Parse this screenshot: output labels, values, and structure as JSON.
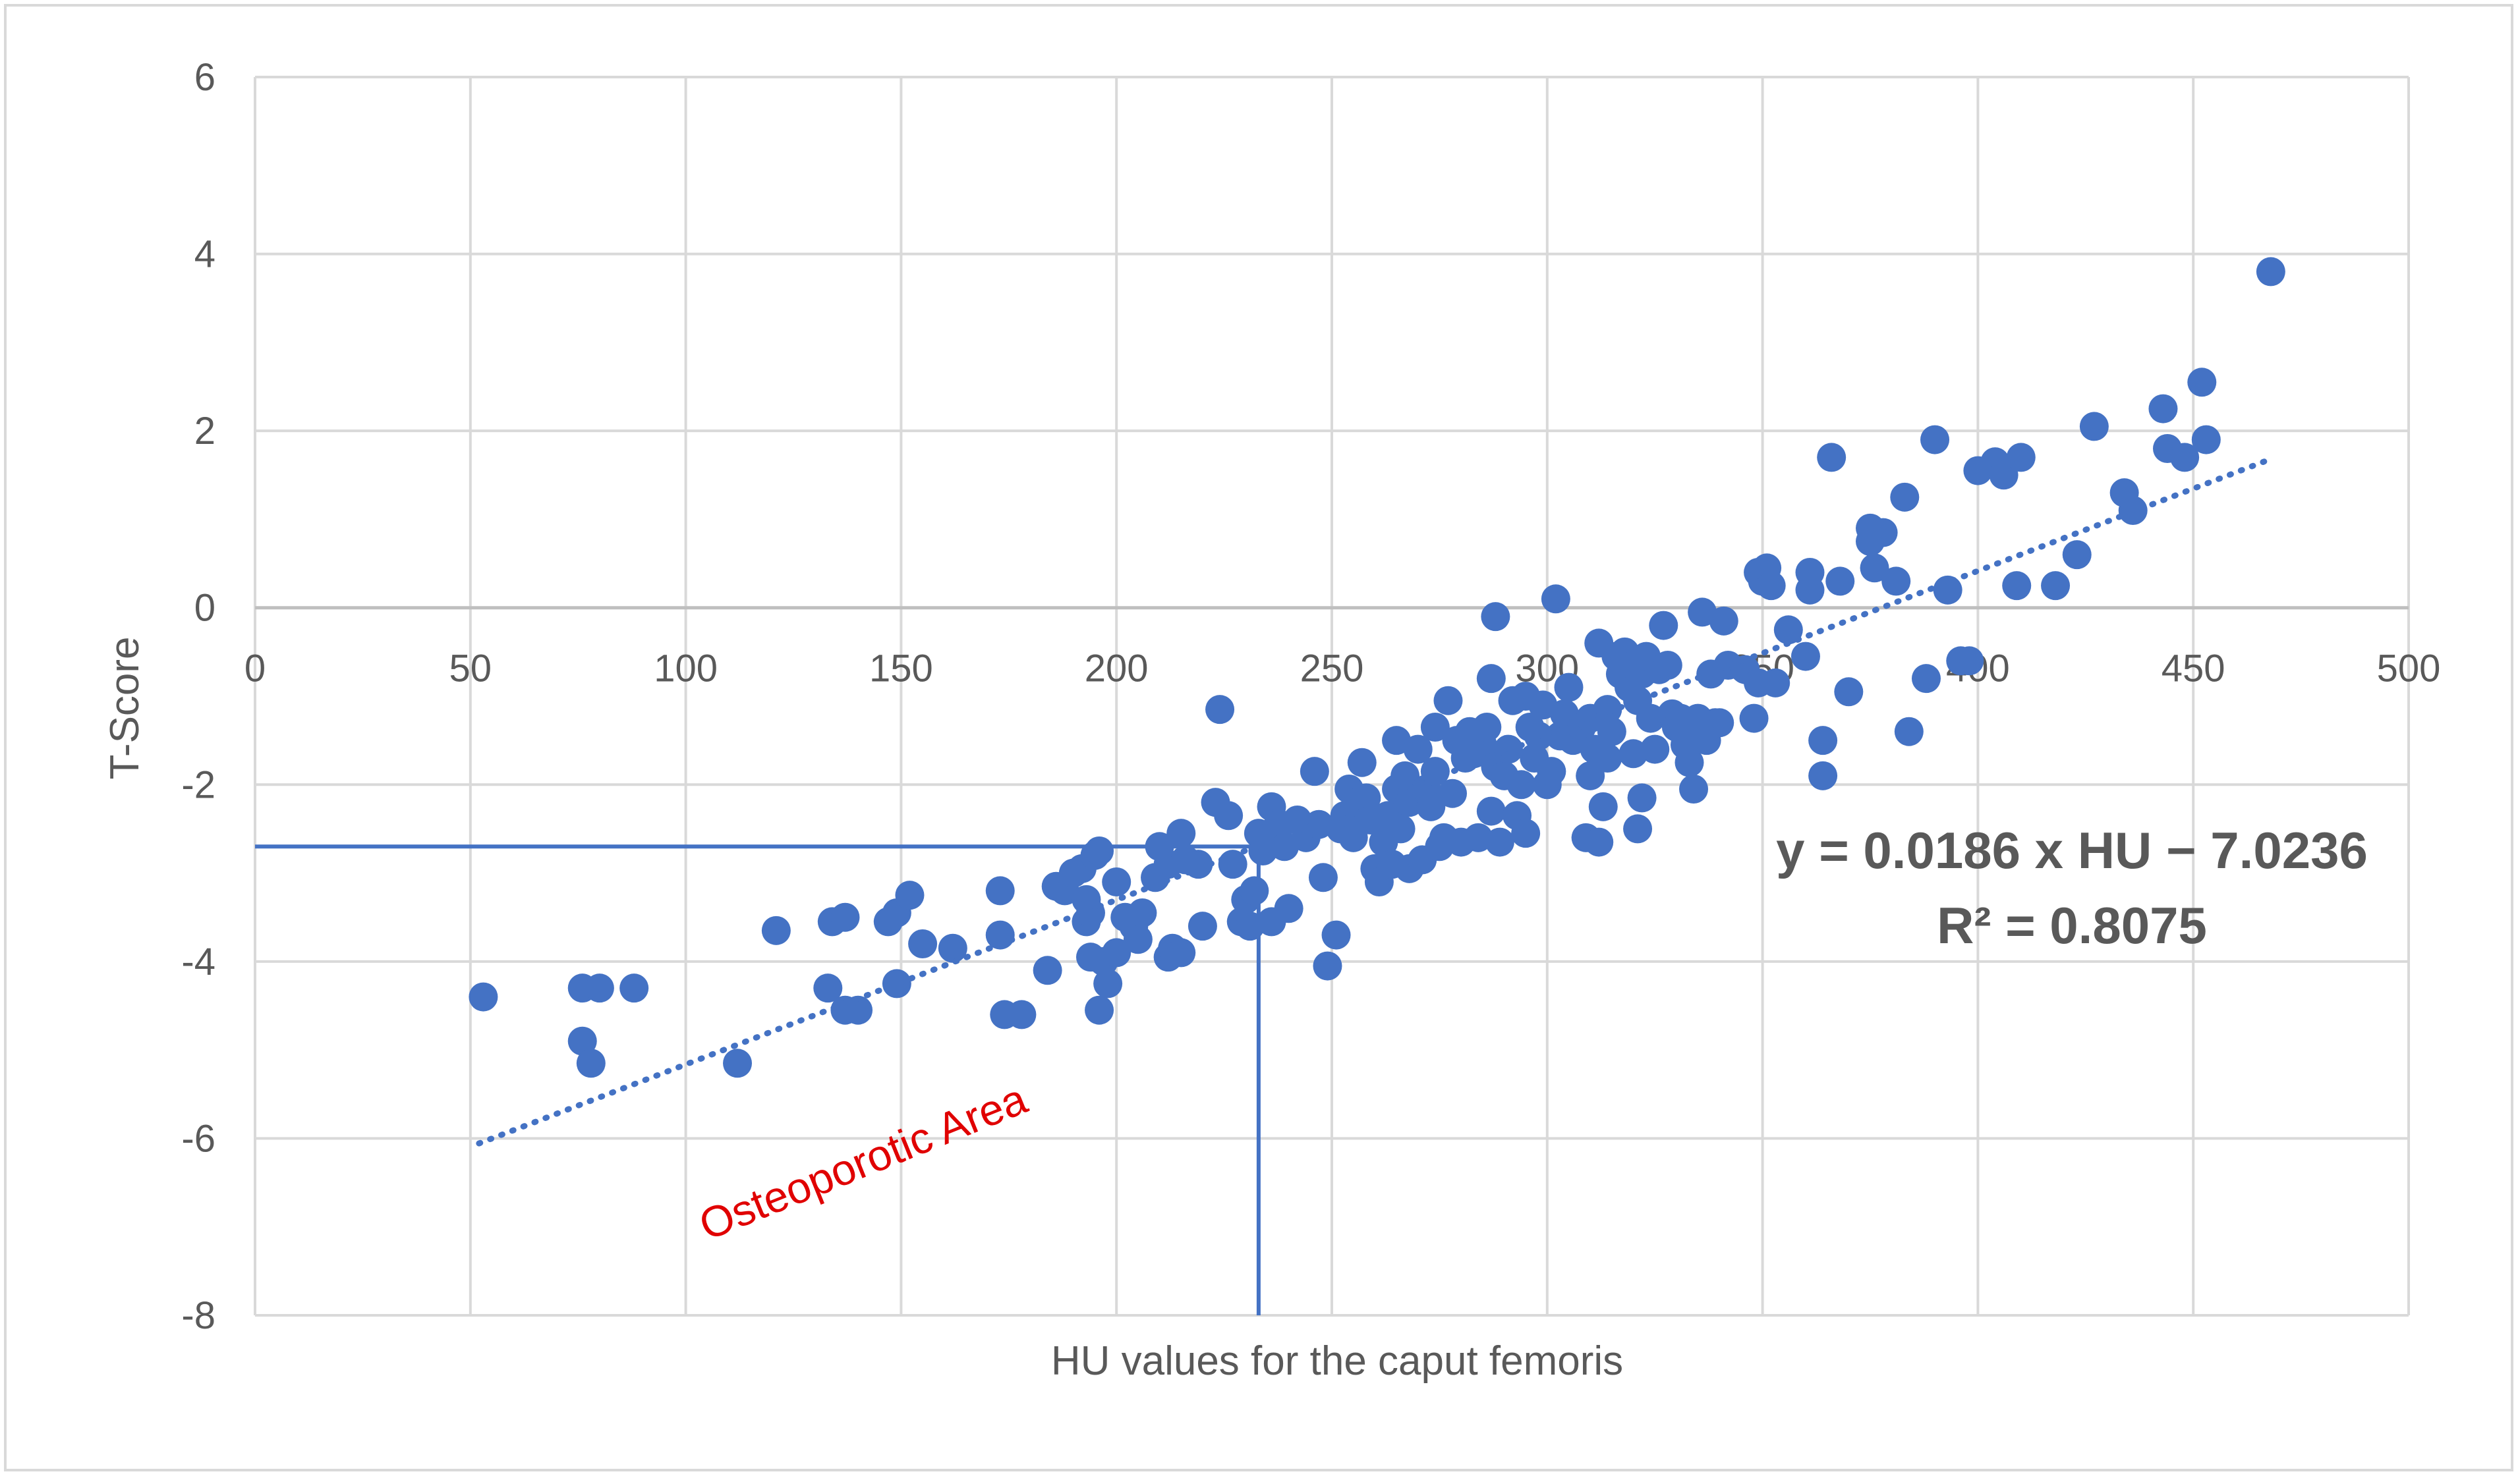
{
  "chart_data": {
    "type": "scatter",
    "xlabel": "HU values for the caput femoris",
    "ylabel": "T-Score",
    "xlim": [
      0,
      500
    ],
    "ylim": [
      -8,
      6
    ],
    "x_ticks": [
      0,
      50,
      100,
      150,
      200,
      250,
      300,
      350,
      400,
      450,
      500
    ],
    "y_ticks": [
      -8,
      -6,
      -4,
      -2,
      0,
      2,
      4,
      6
    ],
    "grid": true,
    "marker_color": "#4472c4",
    "trendline": {
      "style": "dotted",
      "slope": 0.0186,
      "intercept": -7.0236,
      "x_range": [
        52,
        467
      ],
      "equation": "y = 0.0186 x HU − 7.0236",
      "r_squared": "R² = 0.8075"
    },
    "threshold_lines": {
      "t_score": -2.7,
      "hu": 233,
      "color": "#4472c4"
    },
    "annotation": "Osteoporotic Area",
    "annotation_color": "#e00000",
    "points": [
      [
        53,
        -4.4
      ],
      [
        76,
        -4.3
      ],
      [
        80,
        -4.3
      ],
      [
        88,
        -4.3
      ],
      [
        76,
        -4.9
      ],
      [
        78,
        -5.15
      ],
      [
        112,
        -5.15
      ],
      [
        121,
        -3.65
      ],
      [
        134,
        -3.55
      ],
      [
        137,
        -3.5
      ],
      [
        133,
        -4.3
      ],
      [
        137,
        -4.55
      ],
      [
        140,
        -4.55
      ],
      [
        147,
        -3.55
      ],
      [
        149,
        -3.45
      ],
      [
        152,
        -3.25
      ],
      [
        149,
        -4.25
      ],
      [
        155,
        -3.8
      ],
      [
        162,
        -3.85
      ],
      [
        173,
        -3.2
      ],
      [
        173,
        -3.7
      ],
      [
        174,
        -4.6
      ],
      [
        178,
        -4.6
      ],
      [
        184,
        -4.1
      ],
      [
        186,
        -3.15
      ],
      [
        188,
        -3.2
      ],
      [
        190,
        -3.0
      ],
      [
        192,
        -2.95
      ],
      [
        193,
        -3.3
      ],
      [
        193,
        -3.55
      ],
      [
        194,
        -3.45
      ],
      [
        195,
        -2.8
      ],
      [
        196,
        -2.75
      ],
      [
        194,
        -3.95
      ],
      [
        196,
        -4.55
      ],
      [
        197,
        -4.0
      ],
      [
        198,
        -4.25
      ],
      [
        200,
        -3.9
      ],
      [
        200,
        -3.1
      ],
      [
        202,
        -3.5
      ],
      [
        204,
        -3.6
      ],
      [
        205,
        -3.75
      ],
      [
        206,
        -3.45
      ],
      [
        209,
        -3.05
      ],
      [
        210,
        -2.7
      ],
      [
        212,
        -2.9
      ],
      [
        212,
        -3.95
      ],
      [
        213,
        -3.85
      ],
      [
        215,
        -2.55
      ],
      [
        215,
        -3.9
      ],
      [
        216,
        -2.85
      ],
      [
        219,
        -2.9
      ],
      [
        220,
        -3.6
      ],
      [
        223,
        -2.2
      ],
      [
        224,
        -1.15
      ],
      [
        226,
        -2.35
      ],
      [
        227,
        -2.9
      ],
      [
        229,
        -3.55
      ],
      [
        230,
        -3.3
      ],
      [
        231,
        -3.6
      ],
      [
        232,
        -3.2
      ],
      [
        233,
        -2.55
      ],
      [
        234,
        -2.75
      ],
      [
        235,
        -2.6
      ],
      [
        236,
        -3.55
      ],
      [
        236,
        -2.25
      ],
      [
        237,
        -2.5
      ],
      [
        238,
        -2.45
      ],
      [
        239,
        -2.7
      ],
      [
        240,
        -3.4
      ],
      [
        242,
        -2.4
      ],
      [
        244,
        -2.6
      ],
      [
        246,
        -1.85
      ],
      [
        247,
        -2.45
      ],
      [
        248,
        -3.05
      ],
      [
        249,
        -4.05
      ],
      [
        251,
        -3.7
      ],
      [
        252,
        -2.5
      ],
      [
        253,
        -2.35
      ],
      [
        254,
        -2.05
      ],
      [
        255,
        -2.6
      ],
      [
        256,
        -2.2
      ],
      [
        257,
        -1.75
      ],
      [
        258,
        -2.15
      ],
      [
        259,
        -2.4
      ],
      [
        260,
        -2.95
      ],
      [
        261,
        -3.1
      ],
      [
        262,
        -2.65
      ],
      [
        263,
        -2.35
      ],
      [
        264,
        -2.9
      ],
      [
        265,
        -2.05
      ],
      [
        265,
        -1.5
      ],
      [
        266,
        -2.5
      ],
      [
        267,
        -1.9
      ],
      [
        268,
        -2.2
      ],
      [
        268,
        -2.95
      ],
      [
        270,
        -1.6
      ],
      [
        271,
        -2.85
      ],
      [
        272,
        -2.05
      ],
      [
        273,
        -2.25
      ],
      [
        274,
        -1.85
      ],
      [
        274,
        -1.35
      ],
      [
        275,
        -2.7
      ],
      [
        276,
        -2.6
      ],
      [
        277,
        -1.05
      ],
      [
        278,
        -2.1
      ],
      [
        279,
        -1.5
      ],
      [
        280,
        -2.65
      ],
      [
        281,
        -1.7
      ],
      [
        282,
        -1.4
      ],
      [
        283,
        -1.65
      ],
      [
        284,
        -2.6
      ],
      [
        285,
        -1.55
      ],
      [
        286,
        -1.35
      ],
      [
        287,
        -0.8
      ],
      [
        287,
        -2.3
      ],
      [
        288,
        -1.8
      ],
      [
        288,
        -0.1
      ],
      [
        289,
        -2.65
      ],
      [
        290,
        -1.9
      ],
      [
        291,
        -1.6
      ],
      [
        292,
        -1.05
      ],
      [
        293,
        -2.35
      ],
      [
        294,
        -2.0
      ],
      [
        295,
        -2.55
      ],
      [
        295,
        -1.0
      ],
      [
        296,
        -1.35
      ],
      [
        297,
        -1.7
      ],
      [
        298,
        -1.45
      ],
      [
        299,
        -1.1
      ],
      [
        300,
        -2.0
      ],
      [
        301,
        -1.85
      ],
      [
        302,
        0.1
      ],
      [
        303,
        -1.45
      ],
      [
        304,
        -1.2
      ],
      [
        305,
        -0.9
      ],
      [
        306,
        -1.5
      ],
      [
        308,
        -1.35
      ],
      [
        309,
        -2.6
      ],
      [
        310,
        -1.9
      ],
      [
        310,
        -1.25
      ],
      [
        311,
        -1.6
      ],
      [
        312,
        -0.4
      ],
      [
        312,
        -2.65
      ],
      [
        313,
        -2.25
      ],
      [
        314,
        -1.7
      ],
      [
        314,
        -1.15
      ],
      [
        315,
        -1.4
      ],
      [
        316,
        -0.55
      ],
      [
        317,
        -0.75
      ],
      [
        318,
        -0.5
      ],
      [
        319,
        -0.9
      ],
      [
        320,
        -1.65
      ],
      [
        320,
        -0.65
      ],
      [
        321,
        -2.5
      ],
      [
        321,
        -1.05
      ],
      [
        322,
        -2.15
      ],
      [
        322,
        -0.75
      ],
      [
        323,
        -0.55
      ],
      [
        324,
        -1.25
      ],
      [
        325,
        -1.6
      ],
      [
        326,
        -0.7
      ],
      [
        327,
        -0.2
      ],
      [
        328,
        -0.65
      ],
      [
        329,
        -1.2
      ],
      [
        330,
        -1.35
      ],
      [
        331,
        -1.25
      ],
      [
        332,
        -1.55
      ],
      [
        333,
        -1.75
      ],
      [
        333,
        -1.4
      ],
      [
        334,
        -2.05
      ],
      [
        335,
        -1.25
      ],
      [
        336,
        -0.05
      ],
      [
        337,
        -1.5
      ],
      [
        338,
        -0.75
      ],
      [
        339,
        -1.3
      ],
      [
        340,
        -1.3
      ],
      [
        341,
        -0.15
      ],
      [
        342,
        -0.65
      ],
      [
        346,
        -0.7
      ],
      [
        348,
        -1.25
      ],
      [
        349,
        -0.85
      ],
      [
        349,
        0.4
      ],
      [
        350,
        0.3
      ],
      [
        351,
        0.45
      ],
      [
        352,
        0.25
      ],
      [
        353,
        -0.85
      ],
      [
        356,
        -0.25
      ],
      [
        360,
        -0.55
      ],
      [
        361,
        0.2
      ],
      [
        361,
        0.4
      ],
      [
        364,
        -1.5
      ],
      [
        364,
        -1.9
      ],
      [
        366,
        1.7
      ],
      [
        368,
        0.3
      ],
      [
        370,
        -0.95
      ],
      [
        375,
        0.75
      ],
      [
        375,
        0.9
      ],
      [
        376,
        0.45
      ],
      [
        378,
        0.85
      ],
      [
        381,
        0.3
      ],
      [
        383,
        1.25
      ],
      [
        384,
        -1.4
      ],
      [
        388,
        -0.8
      ],
      [
        390,
        1.9
      ],
      [
        393,
        0.2
      ],
      [
        396,
        -0.6
      ],
      [
        398,
        -0.6
      ],
      [
        400,
        1.55
      ],
      [
        404,
        1.65
      ],
      [
        406,
        1.5
      ],
      [
        409,
        0.25
      ],
      [
        410,
        1.7
      ],
      [
        418,
        0.25
      ],
      [
        423,
        0.6
      ],
      [
        427,
        2.05
      ],
      [
        434,
        1.3
      ],
      [
        436,
        1.1
      ],
      [
        443,
        2.25
      ],
      [
        444,
        1.8
      ],
      [
        448,
        1.7
      ],
      [
        452,
        2.55
      ],
      [
        453,
        1.9
      ],
      [
        468,
        3.8
      ]
    ]
  }
}
